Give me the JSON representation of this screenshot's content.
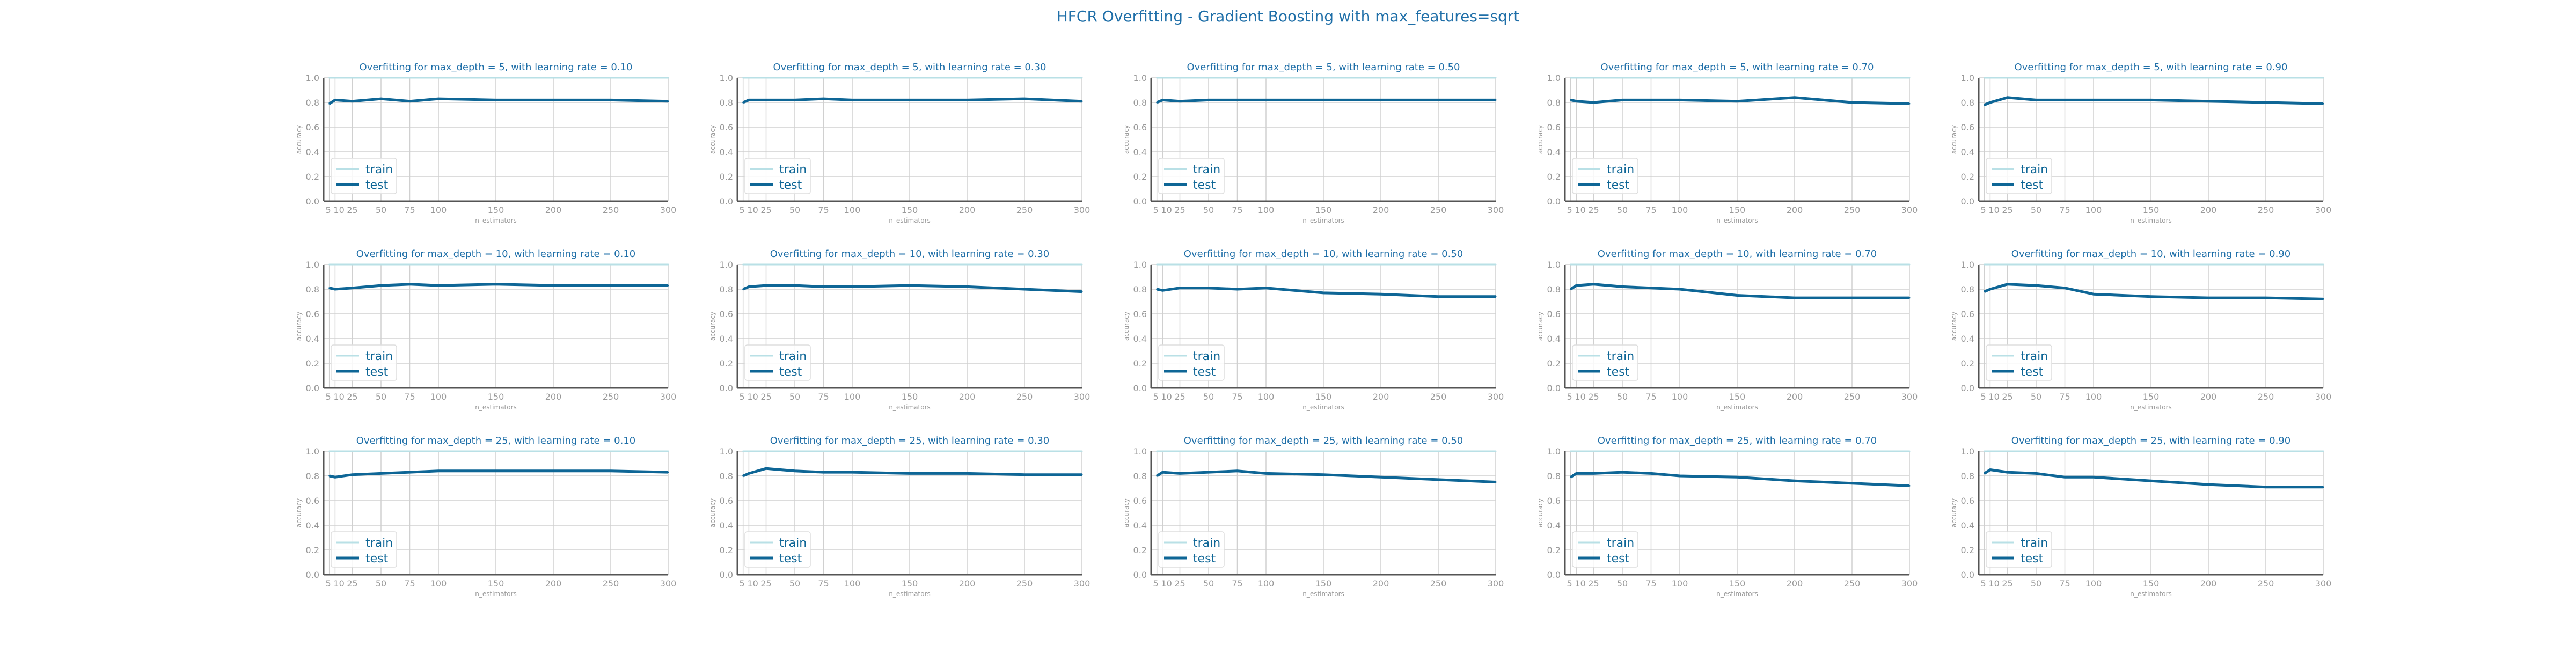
{
  "figure": {
    "title": "HFCR Overfitting - Gradient Boosting with max_features=sqrt"
  },
  "colors": {
    "train": "#b9e0e6",
    "test": "#0e6696",
    "title": "#1f6fa8",
    "grid": "#d0d0d0",
    "axis": "#555555",
    "tick": "#999999"
  },
  "chart_data": {
    "type": "line",
    "layout": "3 rows x 5 columns",
    "x": [
      5,
      10,
      25,
      50,
      75,
      100,
      150,
      200,
      250,
      300
    ],
    "xticks": [
      5,
      10,
      25,
      50,
      75,
      100,
      150,
      200,
      250,
      300
    ],
    "xtick_labels": [
      "5",
      "10",
      "25",
      "50",
      "75",
      "100",
      "150",
      "200",
      "250",
      "300"
    ],
    "yticks": [
      0.0,
      0.2,
      0.4,
      0.6,
      0.8,
      1.0
    ],
    "ytick_labels": [
      "0.0",
      "0.2",
      "0.4",
      "0.6",
      "0.8",
      "1.0"
    ],
    "xlim": [
      0,
      300
    ],
    "ylim": [
      0,
      1
    ],
    "xlabel": "n_estimators",
    "ylabel": "accuracy",
    "legend": {
      "position": "lower-left",
      "entries": [
        "train",
        "test"
      ]
    },
    "panels": [
      {
        "title": "Overfitting for max_depth = 5, with learning rate = 0.10",
        "series": [
          {
            "name": "train",
            "values": [
              1,
              1,
              1,
              1,
              1,
              1,
              1,
              1,
              1,
              1
            ]
          },
          {
            "name": "test",
            "values": [
              0.79,
              0.82,
              0.81,
              0.83,
              0.81,
              0.83,
              0.82,
              0.82,
              0.82,
              0.81
            ]
          }
        ]
      },
      {
        "title": "Overfitting for max_depth = 5, with learning rate = 0.30",
        "series": [
          {
            "name": "train",
            "values": [
              1,
              1,
              1,
              1,
              1,
              1,
              1,
              1,
              1,
              1
            ]
          },
          {
            "name": "test",
            "values": [
              0.8,
              0.82,
              0.82,
              0.82,
              0.83,
              0.82,
              0.82,
              0.82,
              0.83,
              0.81
            ]
          }
        ]
      },
      {
        "title": "Overfitting for max_depth = 5, with learning rate = 0.50",
        "series": [
          {
            "name": "train",
            "values": [
              1,
              1,
              1,
              1,
              1,
              1,
              1,
              1,
              1,
              1
            ]
          },
          {
            "name": "test",
            "values": [
              0.8,
              0.82,
              0.81,
              0.82,
              0.82,
              0.82,
              0.82,
              0.82,
              0.82,
              0.82
            ]
          }
        ]
      },
      {
        "title": "Overfitting for max_depth = 5, with learning rate = 0.70",
        "series": [
          {
            "name": "train",
            "values": [
              1,
              1,
              1,
              1,
              1,
              1,
              1,
              1,
              1,
              1
            ]
          },
          {
            "name": "test",
            "values": [
              0.82,
              0.81,
              0.8,
              0.82,
              0.82,
              0.82,
              0.81,
              0.84,
              0.8,
              0.79
            ]
          }
        ]
      },
      {
        "title": "Overfitting for max_depth = 5, with learning rate = 0.90",
        "series": [
          {
            "name": "train",
            "values": [
              1,
              1,
              1,
              1,
              1,
              1,
              1,
              1,
              1,
              1
            ]
          },
          {
            "name": "test",
            "values": [
              0.78,
              0.8,
              0.84,
              0.82,
              0.82,
              0.82,
              0.82,
              0.81,
              0.8,
              0.79
            ]
          }
        ]
      },
      {
        "title": "Overfitting for max_depth = 10, with learning rate = 0.10",
        "series": [
          {
            "name": "train",
            "values": [
              1,
              1,
              1,
              1,
              1,
              1,
              1,
              1,
              1,
              1
            ]
          },
          {
            "name": "test",
            "values": [
              0.81,
              0.8,
              0.81,
              0.83,
              0.84,
              0.83,
              0.84,
              0.83,
              0.83,
              0.83
            ]
          }
        ]
      },
      {
        "title": "Overfitting for max_depth = 10, with learning rate = 0.30",
        "series": [
          {
            "name": "train",
            "values": [
              1,
              1,
              1,
              1,
              1,
              1,
              1,
              1,
              1,
              1
            ]
          },
          {
            "name": "test",
            "values": [
              0.8,
              0.82,
              0.83,
              0.83,
              0.82,
              0.82,
              0.83,
              0.82,
              0.8,
              0.78
            ]
          }
        ]
      },
      {
        "title": "Overfitting for max_depth = 10, with learning rate = 0.50",
        "series": [
          {
            "name": "train",
            "values": [
              1,
              1,
              1,
              1,
              1,
              1,
              1,
              1,
              1,
              1
            ]
          },
          {
            "name": "test",
            "values": [
              0.8,
              0.79,
              0.81,
              0.81,
              0.8,
              0.81,
              0.77,
              0.76,
              0.74,
              0.74
            ]
          }
        ]
      },
      {
        "title": "Overfitting for max_depth = 10, with learning rate = 0.70",
        "series": [
          {
            "name": "train",
            "values": [
              1,
              1,
              1,
              1,
              1,
              1,
              1,
              1,
              1,
              1
            ]
          },
          {
            "name": "test",
            "values": [
              0.8,
              0.83,
              0.84,
              0.82,
              0.81,
              0.8,
              0.75,
              0.73,
              0.73,
              0.73
            ]
          }
        ]
      },
      {
        "title": "Overfitting for max_depth = 10, with learning rate = 0.90",
        "series": [
          {
            "name": "train",
            "values": [
              1,
              1,
              1,
              1,
              1,
              1,
              1,
              1,
              1,
              1
            ]
          },
          {
            "name": "test",
            "values": [
              0.78,
              0.8,
              0.84,
              0.83,
              0.81,
              0.76,
              0.74,
              0.73,
              0.73,
              0.72
            ]
          }
        ]
      },
      {
        "title": "Overfitting for max_depth = 25, with learning rate = 0.10",
        "series": [
          {
            "name": "train",
            "values": [
              1,
              1,
              1,
              1,
              1,
              1,
              1,
              1,
              1,
              1
            ]
          },
          {
            "name": "test",
            "values": [
              0.8,
              0.79,
              0.81,
              0.82,
              0.83,
              0.84,
              0.84,
              0.84,
              0.84,
              0.83
            ]
          }
        ]
      },
      {
        "title": "Overfitting for max_depth = 25, with learning rate = 0.30",
        "series": [
          {
            "name": "train",
            "values": [
              1,
              1,
              1,
              1,
              1,
              1,
              1,
              1,
              1,
              1
            ]
          },
          {
            "name": "test",
            "values": [
              0.8,
              0.82,
              0.86,
              0.84,
              0.83,
              0.83,
              0.82,
              0.82,
              0.81,
              0.81
            ]
          }
        ]
      },
      {
        "title": "Overfitting for max_depth = 25, with learning rate = 0.50",
        "series": [
          {
            "name": "train",
            "values": [
              1,
              1,
              1,
              1,
              1,
              1,
              1,
              1,
              1,
              1
            ]
          },
          {
            "name": "test",
            "values": [
              0.8,
              0.83,
              0.82,
              0.83,
              0.84,
              0.82,
              0.81,
              0.79,
              0.77,
              0.75
            ]
          }
        ]
      },
      {
        "title": "Overfitting for max_depth = 25, with learning rate = 0.70",
        "series": [
          {
            "name": "train",
            "values": [
              1,
              1,
              1,
              1,
              1,
              1,
              1,
              1,
              1,
              1
            ]
          },
          {
            "name": "test",
            "values": [
              0.79,
              0.82,
              0.82,
              0.83,
              0.82,
              0.8,
              0.79,
              0.76,
              0.74,
              0.72
            ]
          }
        ]
      },
      {
        "title": "Overfitting for max_depth = 25, with learning rate = 0.90",
        "series": [
          {
            "name": "train",
            "values": [
              1,
              1,
              1,
              1,
              1,
              1,
              1,
              1,
              1,
              1
            ]
          },
          {
            "name": "test",
            "values": [
              0.82,
              0.85,
              0.83,
              0.82,
              0.79,
              0.79,
              0.76,
              0.73,
              0.71,
              0.71
            ]
          }
        ]
      }
    ]
  }
}
